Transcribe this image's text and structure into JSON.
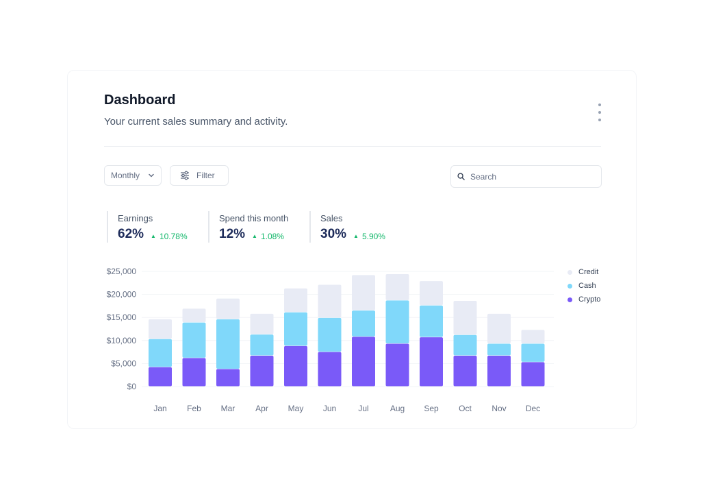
{
  "header": {
    "title": "Dashboard",
    "subtitle": "Your current sales summary and activity."
  },
  "controls": {
    "period_label": "Monthly",
    "filter_label": "Filter",
    "search_placeholder": "Search"
  },
  "stats": [
    {
      "label": "Earnings",
      "value": "62%",
      "change": "10.78%"
    },
    {
      "label": "Spend this month",
      "value": "12%",
      "change": "1.08%"
    },
    {
      "label": "Sales",
      "value": "30%",
      "change": "5.90%"
    }
  ],
  "colors": {
    "credit": "#e8ebf5",
    "cash": "#80d8fa",
    "crypto": "#7a5af8",
    "positive": "#12b76a",
    "stat_value": "#1d2b5a"
  },
  "chart_data": {
    "type": "bar",
    "stacked": true,
    "categories": [
      "Jan",
      "Feb",
      "Mar",
      "Apr",
      "May",
      "Jun",
      "Jul",
      "Aug",
      "Sep",
      "Oct",
      "Nov",
      "Dec"
    ],
    "series": [
      {
        "name": "Crypto",
        "values": [
          4200,
          6200,
          3800,
          6700,
          8800,
          7500,
          10800,
          9300,
          10700,
          6700,
          6700,
          5300
        ]
      },
      {
        "name": "Cash",
        "values": [
          6100,
          7700,
          10800,
          4600,
          7300,
          7400,
          5700,
          9400,
          6900,
          4500,
          2600,
          4000
        ]
      },
      {
        "name": "Credit",
        "values": [
          4300,
          3000,
          4500,
          4500,
          5200,
          7200,
          7700,
          5700,
          5300,
          7400,
          6500,
          3000
        ]
      }
    ],
    "yticks": [
      "$0",
      "$5,000",
      "$10,000",
      "$15,000",
      "$20,000",
      "$25,000"
    ],
    "ylim": [
      0,
      25000
    ],
    "grid": true,
    "legend_position": "right"
  }
}
